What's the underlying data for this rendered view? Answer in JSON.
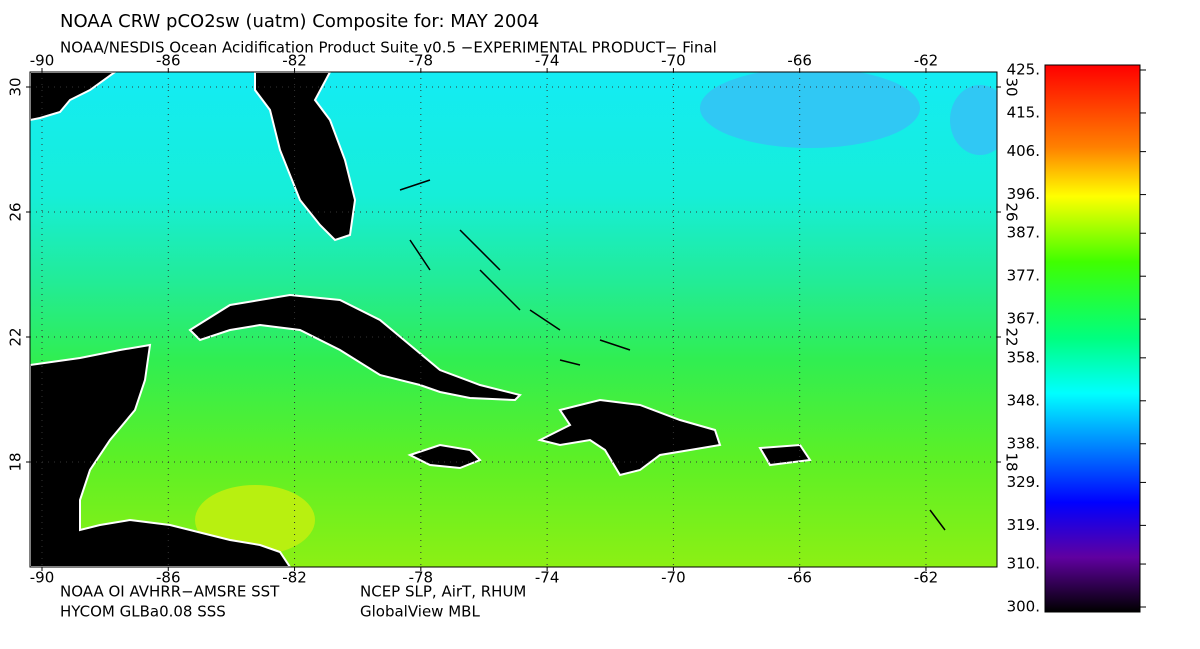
{
  "header": {
    "title": "NOAA CRW pCO2sw (uatm) Composite for: MAY 2004",
    "subtitle": "NOAA/NESDIS Ocean Acidification Product Suite  v0.5 −EXPERIMENTAL PRODUCT−    Final"
  },
  "map": {
    "lonlim": [
      -90.38,
      -59.75
    ],
    "latlim": [
      14.64,
      30.48
    ],
    "lon_ticks": [
      -90,
      -86,
      -82,
      -78,
      -74,
      -70,
      -66,
      -62
    ],
    "lat_ticks": [
      30,
      26,
      22,
      18
    ],
    "grid": true
  },
  "colorbar": {
    "lim": [
      300,
      425
    ],
    "ticks": [
      {
        "value": 425,
        "label": "425."
      },
      {
        "value": 415,
        "label": "415."
      },
      {
        "value": 406,
        "label": "406."
      },
      {
        "value": 396,
        "label": "396."
      },
      {
        "value": 387,
        "label": "387."
      },
      {
        "value": 377,
        "label": "377."
      },
      {
        "value": 367,
        "label": "367."
      },
      {
        "value": 358,
        "label": "358."
      },
      {
        "value": 348,
        "label": "348."
      },
      {
        "value": 338,
        "label": "338."
      },
      {
        "value": 329,
        "label": "329."
      },
      {
        "value": 319,
        "label": "319."
      },
      {
        "value": 310,
        "label": "310."
      },
      {
        "value": 300,
        "label": "300."
      }
    ]
  },
  "footer": {
    "left": [
      "NOAA OI AVHRR−AMSRE SST",
      "HYCOM GLBa0.08 SSS"
    ],
    "right": [
      "NCEP SLP, AirT, RHUM",
      "GlobalView MBL"
    ]
  }
}
